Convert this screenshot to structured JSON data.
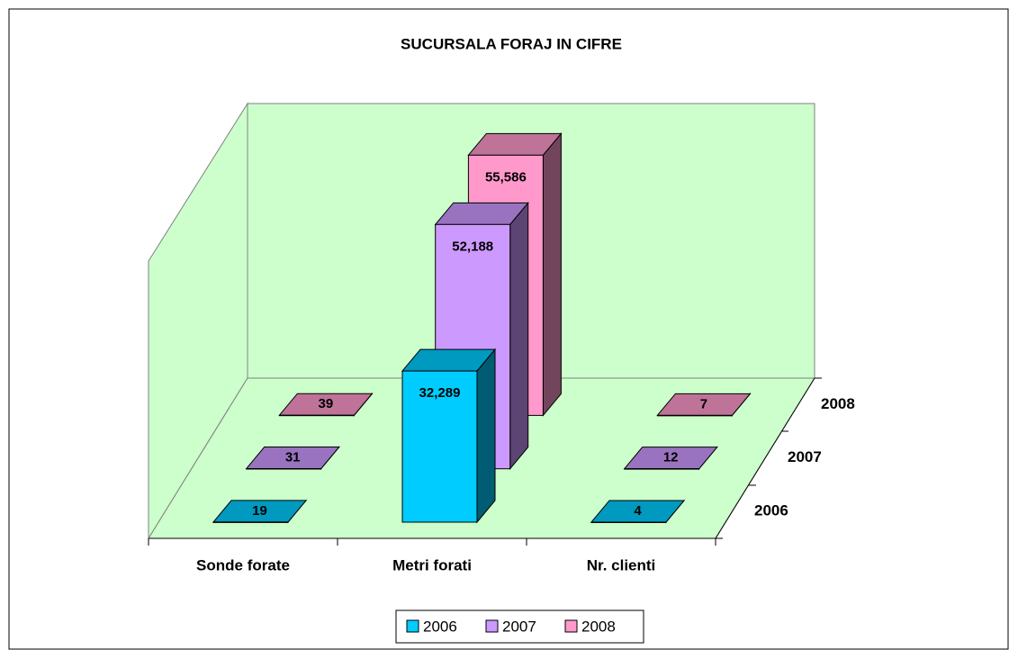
{
  "chart_data": {
    "type": "bar3d",
    "title": "SUCURSALA FORAJ IN CIFRE",
    "categories": [
      "Sonde forate",
      "Metri forati",
      "Nr. clienti"
    ],
    "series": [
      {
        "name": "2006",
        "color": "#00ccff",
        "values": [
          19,
          32289,
          4
        ],
        "value_labels": [
          "19",
          "32,289",
          "4"
        ]
      },
      {
        "name": "2007",
        "color": "#cc99ff",
        "values": [
          31,
          52188,
          12
        ],
        "value_labels": [
          "31",
          "52,188",
          "12"
        ]
      },
      {
        "name": "2008",
        "color": "#ff99cc",
        "values": [
          39,
          55586,
          7
        ],
        "value_labels": [
          "39",
          "55,586",
          "7"
        ]
      }
    ],
    "ylim": [
      0,
      60000
    ],
    "legend": "bottom"
  }
}
